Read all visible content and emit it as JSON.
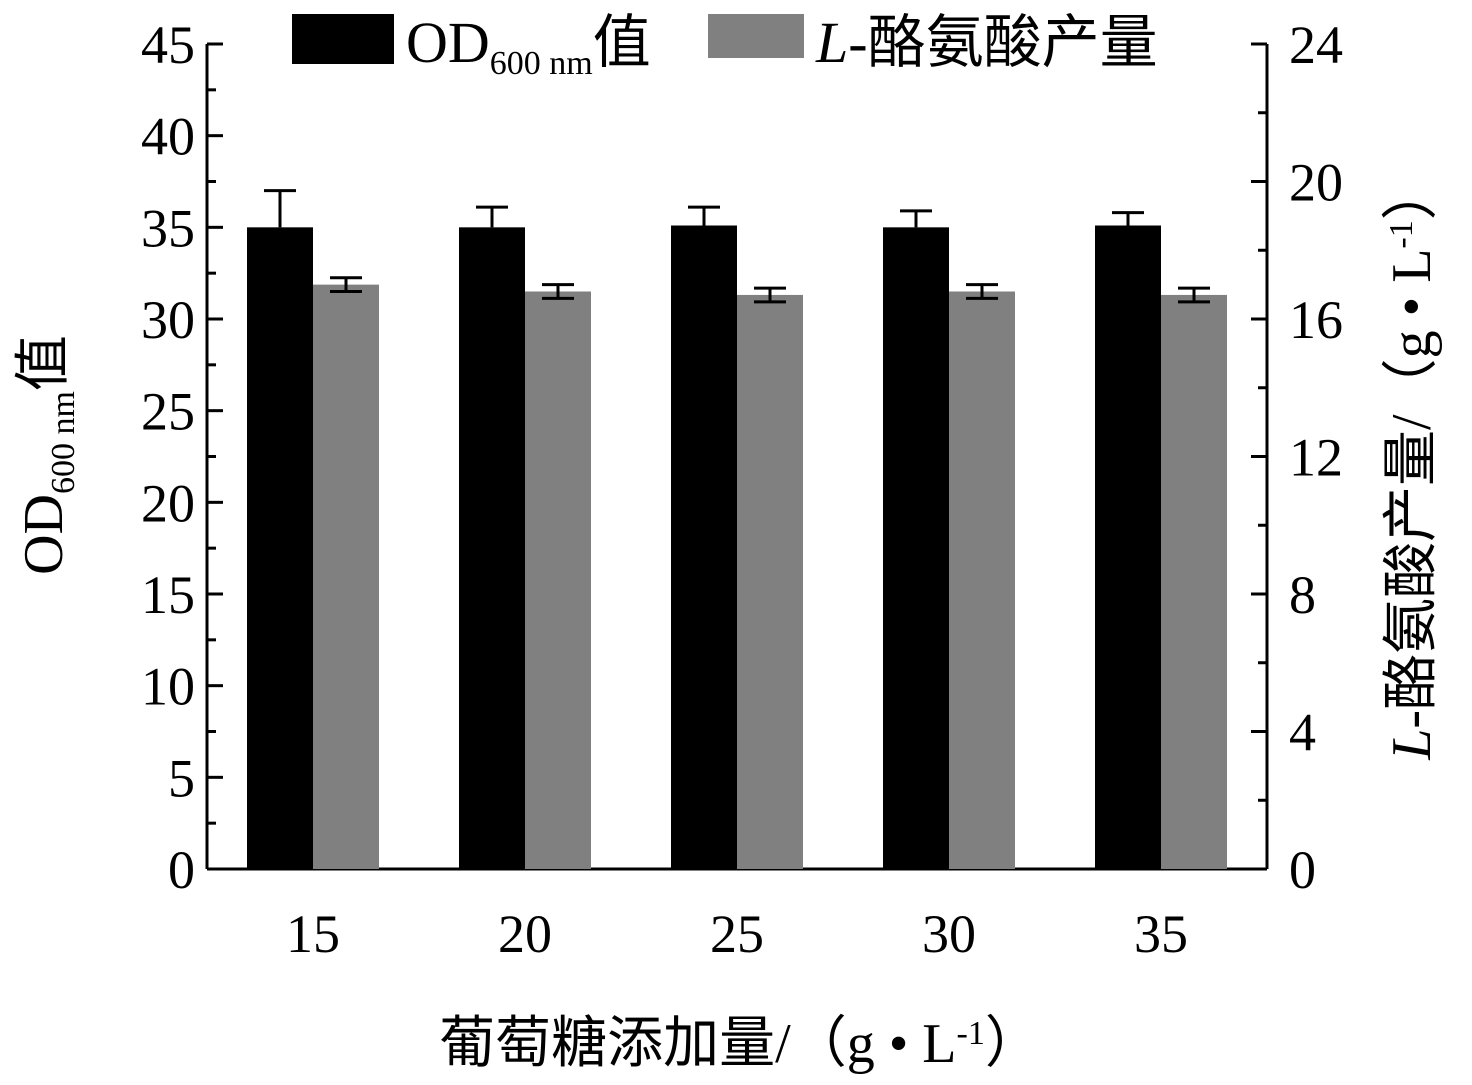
{
  "chart_data": {
    "type": "bar",
    "categories": [
      "15",
      "20",
      "25",
      "30",
      "35"
    ],
    "xlabel": "葡萄糖添加量/（g • L-1）",
    "xlabel_parts": {
      "main": "葡萄糖添加量/（g • L",
      "sup": "-1",
      "close": "）"
    },
    "ylabel_left": "OD600 nm值",
    "ylabel_left_parts": {
      "main": "OD",
      "sub": "600 nm",
      "tail": "值"
    },
    "ylabel_right": "L-酪氨酸产量/（g • L-1）",
    "ylabel_right_parts": {
      "italic": "L",
      "main": "-酪氨酸产量/（g • L",
      "sup": "-1",
      "close": "）"
    },
    "ylim_left": [
      0,
      45
    ],
    "ylim_right": [
      0,
      24
    ],
    "yticks_left": [
      "0",
      "5",
      "10",
      "15",
      "20",
      "25",
      "30",
      "35",
      "40",
      "45"
    ],
    "yticks_right": [
      "0",
      "4",
      "8",
      "12",
      "16",
      "20",
      "24"
    ],
    "legend_position": "top-center",
    "grid": false,
    "series": [
      {
        "name": "OD600 nm值",
        "name_parts": {
          "main": "OD",
          "sub": "600 nm",
          "tail": "值"
        },
        "axis": "left",
        "color": "#000000",
        "values": [
          35.0,
          35.0,
          35.1,
          35.0,
          35.1
        ],
        "errors": [
          2.0,
          1.1,
          1.0,
          0.9,
          0.7
        ]
      },
      {
        "name": "L-酪氨酸产量",
        "name_parts": {
          "italic": "L",
          "main": "-酪氨酸产量"
        },
        "axis": "right",
        "color": "#808080",
        "values": [
          17.0,
          16.8,
          16.7,
          16.8,
          16.7
        ],
        "errors": [
          0.2,
          0.2,
          0.2,
          0.2,
          0.2
        ]
      }
    ]
  }
}
